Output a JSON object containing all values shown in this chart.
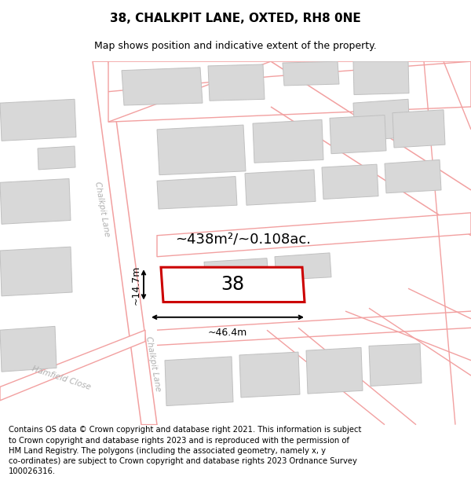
{
  "title": "38, CHALKPIT LANE, OXTED, RH8 0NE",
  "subtitle": "Map shows position and indicative extent of the property.",
  "footer": "Contains OS data © Crown copyright and database right 2021. This information is subject to Crown copyright and database rights 2023 and is reproduced with the permission of HM Land Registry. The polygons (including the associated geometry, namely x, y co-ordinates) are subject to Crown copyright and database rights 2023 Ordnance Survey 100026316.",
  "bg_color": "#ffffff",
  "road_color": "#f2a0a0",
  "building_fill": "#d8d8d8",
  "building_edge": "#c0c0c0",
  "highlight_color": "#cc0000",
  "street_label_color": "#b0b0b0",
  "area_text": "~438m²/~0.108ac.",
  "label_38": "38",
  "dim_width": "~46.4m",
  "dim_height": "~14.7m",
  "title_fontsize": 11,
  "subtitle_fontsize": 9,
  "footer_fontsize": 7.2
}
